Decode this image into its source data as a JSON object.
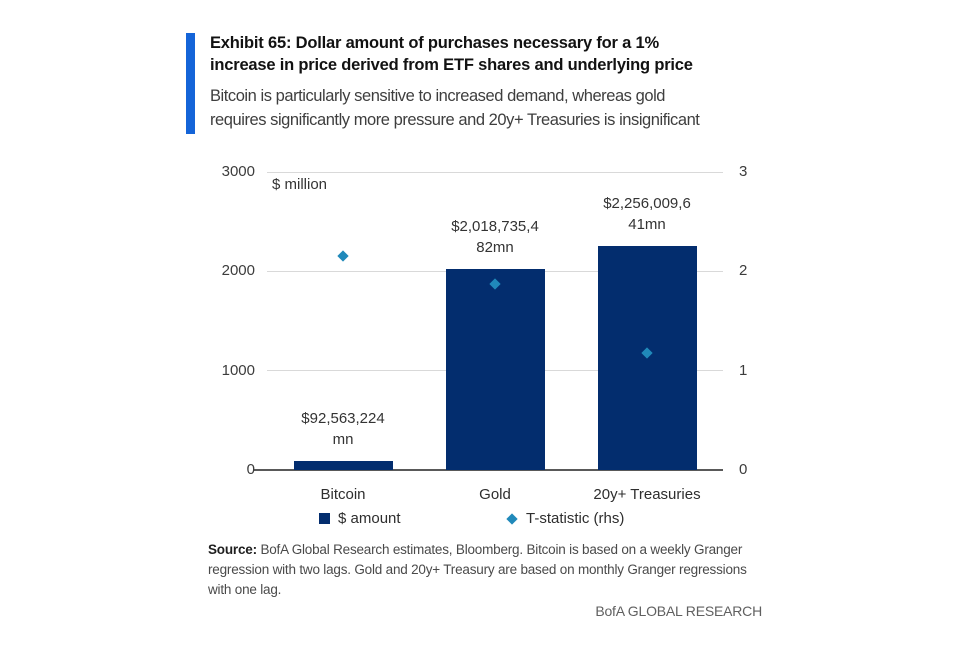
{
  "header": {
    "title_lines": [
      "Exhibit 65: Dollar amount of purchases necessary for a 1%",
      "increase in price derived from ETF shares and underlying price"
    ],
    "subtitle_lines": [
      "Bitcoin is particularly sensitive to increased demand, whereas gold",
      "requires significantly more pressure and 20y+ Treasuries is insignificant"
    ]
  },
  "chart_data": {
    "type": "bar",
    "title": "Exhibit 65: Dollar amount of purchases necessary for a 1% increase in price derived from ETF shares and underlying price",
    "unit_label": "$ million",
    "categories": [
      "Bitcoin",
      "Gold",
      "20y+ Treasuries"
    ],
    "series": [
      {
        "name": "$ amount",
        "axis": "left",
        "values_mn": [
          92.56,
          2018.74,
          2256.01
        ]
      },
      {
        "name": "T-statistic (rhs)",
        "axis": "right",
        "values": [
          2.15,
          1.87,
          1.18
        ]
      }
    ],
    "bar_labels": [
      [
        "$92,563,224",
        "mn"
      ],
      [
        "$2,018,735,4",
        "82mn"
      ],
      [
        "$2,256,009,6",
        "41mn"
      ]
    ],
    "left_axis": {
      "min": 0,
      "max": 3000,
      "ticks": [
        0,
        1000,
        2000,
        3000
      ]
    },
    "right_axis": {
      "min": 0,
      "max": 3,
      "ticks": [
        0,
        1,
        2,
        3
      ]
    },
    "legend": [
      {
        "label": "$ amount",
        "marker": "square"
      },
      {
        "label": "T-statistic (rhs)",
        "marker": "diamond"
      }
    ],
    "grid": "horizontal",
    "legend_position": "bottom"
  },
  "footer": {
    "source_label": "Source:",
    "source_lines": [
      "BofA Global Research estimates, Bloomberg. Bitcoin is based on a weekly Granger",
      "regression with two lags. Gold and 20y+ Treasury are based on monthly Granger regressions",
      "with one lag."
    ],
    "brand": "BofA GLOBAL RESEARCH"
  },
  "colors": {
    "accent": "#1464d8",
    "bar": "#032d6e",
    "diamond": "#2089ba",
    "grid": "#d9d9d9",
    "axis": "#595959"
  }
}
